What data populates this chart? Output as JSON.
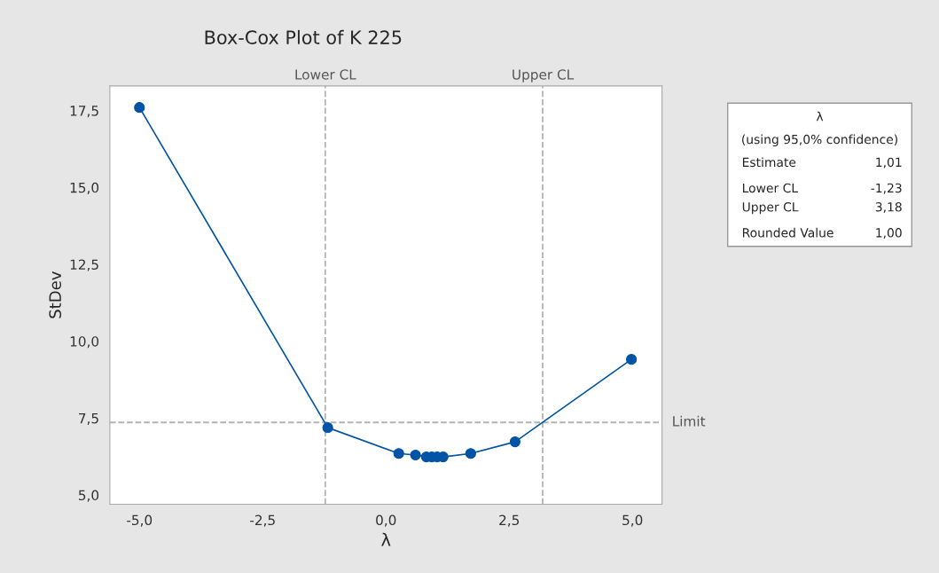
{
  "chart_data": {
    "type": "line",
    "title": "Box-Cox Plot of K 225",
    "xlabel": "λ",
    "ylabel": "StDev",
    "x": [
      -5.0,
      -1.18,
      0.26,
      0.6,
      0.82,
      0.93,
      1.04,
      1.16,
      1.72,
      2.62,
      4.98
    ],
    "series": [
      {
        "color": "#0054a6",
        "values": [
          17.6,
          7.19,
          6.35,
          6.3,
          6.24,
          6.24,
          6.24,
          6.24,
          6.35,
          6.73,
          9.41
        ]
      }
    ],
    "marker": "circle",
    "line_style": "solid",
    "grid": false,
    "legend": false,
    "xlim": [
      -5.6,
      5.6
    ],
    "xticks": [
      {
        "value": -5,
        "label": "-5,0"
      },
      {
        "value": -2.5,
        "label": "-2,5"
      },
      {
        "value": 0,
        "label": "0,0"
      },
      {
        "value": 2.5,
        "label": "2,5"
      },
      {
        "value": 5,
        "label": "5,0"
      }
    ],
    "ylim": [
      4.7,
      18.3
    ],
    "yticks": [
      {
        "value": 5,
        "label": "5,0"
      },
      {
        "value": 7.5,
        "label": "7,5"
      },
      {
        "value": 10,
        "label": "10,0"
      },
      {
        "value": 12.5,
        "label": "12,5"
      },
      {
        "value": 15,
        "label": "15,0"
      },
      {
        "value": 17.5,
        "label": "17,5"
      }
    ],
    "ref_lines": [
      {
        "axis": "x",
        "value": -1.23,
        "label": "Lower CL",
        "color": "#b4b4b4",
        "line_style": "dashed"
      },
      {
        "axis": "x",
        "value": 3.18,
        "label": "Upper CL",
        "color": "#b4b4b4",
        "line_style": "dashed"
      },
      {
        "axis": "y",
        "value": 7.36,
        "label": "Limit",
        "color": "#b4b4b4",
        "line_style": "dashed"
      }
    ],
    "annotations": [
      "λ",
      "(using 95,0% confidence)",
      "Estimate",
      "1,01",
      "Lower CL",
      "-1,23",
      "Upper CL",
      "3,18",
      "Rounded Value",
      "1,00"
    ]
  }
}
